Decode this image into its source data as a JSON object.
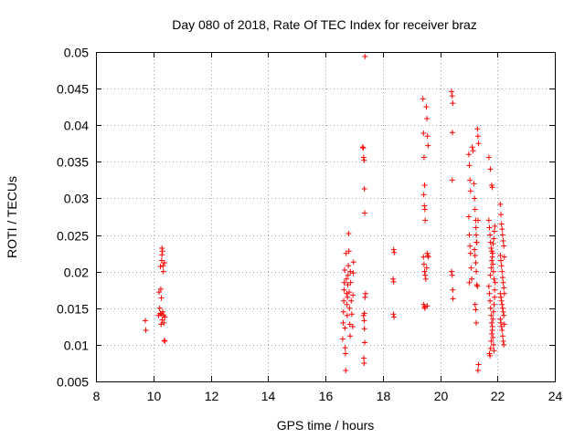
{
  "chart_data": {
    "type": "scatter",
    "title": "Day 080 of 2018, Rate Of TEC Index for receiver braz",
    "xlabel": "GPS time / hours",
    "ylabel": "ROTI / TECUs",
    "xlim": [
      8,
      24
    ],
    "ylim": [
      0.005,
      0.05
    ],
    "x_ticks": [
      8,
      10,
      12,
      14,
      16,
      18,
      20,
      22,
      24
    ],
    "x_tick_labels": [
      "8",
      "10",
      "12",
      "14",
      "16",
      "18",
      "20",
      "22",
      "24"
    ],
    "y_ticks": [
      0.005,
      0.01,
      0.015,
      0.02,
      0.025,
      0.03,
      0.035,
      0.04,
      0.045,
      0.05
    ],
    "y_tick_labels": [
      "0.005",
      "0.01",
      "0.015",
      "0.02",
      "0.025",
      "0.03",
      "0.035",
      "0.04",
      "0.045",
      "0.05"
    ],
    "grid": true,
    "marker": "+",
    "color": "#ff0000",
    "series": [
      {
        "name": "ROTI",
        "points": [
          [
            9.72,
            0.0133
          ],
          [
            9.74,
            0.012
          ],
          [
            10.18,
            0.014
          ],
          [
            10.2,
            0.0172
          ],
          [
            10.22,
            0.015
          ],
          [
            10.24,
            0.0143
          ],
          [
            10.25,
            0.0207
          ],
          [
            10.26,
            0.0176
          ],
          [
            10.27,
            0.0128
          ],
          [
            10.28,
            0.0164
          ],
          [
            10.29,
            0.0215
          ],
          [
            10.3,
            0.0223
          ],
          [
            10.31,
            0.0134
          ],
          [
            10.32,
            0.0228
          ],
          [
            10.33,
            0.0145
          ],
          [
            10.34,
            0.0208
          ],
          [
            10.35,
            0.02
          ],
          [
            10.36,
            0.014
          ],
          [
            10.37,
            0.013
          ],
          [
            10.38,
            0.0106
          ],
          [
            10.39,
            0.0212
          ],
          [
            10.4,
            0.0138
          ],
          [
            10.4,
            0.0105
          ],
          [
            10.3,
            0.0232
          ],
          [
            10.27,
            0.0142
          ],
          [
            16.6,
            0.0108
          ],
          [
            16.62,
            0.013
          ],
          [
            16.63,
            0.0145
          ],
          [
            16.64,
            0.016
          ],
          [
            16.65,
            0.0175
          ],
          [
            16.66,
            0.0185
          ],
          [
            16.67,
            0.0202
          ],
          [
            16.68,
            0.0123
          ],
          [
            16.69,
            0.0096
          ],
          [
            16.7,
            0.0088
          ],
          [
            16.71,
            0.0065
          ],
          [
            16.72,
            0.0225
          ],
          [
            16.73,
            0.019
          ],
          [
            16.74,
            0.017
          ],
          [
            16.75,
            0.0155
          ],
          [
            16.76,
            0.014
          ],
          [
            16.77,
            0.0165
          ],
          [
            16.78,
            0.0182
          ],
          [
            16.79,
            0.0195
          ],
          [
            16.8,
            0.0208
          ],
          [
            16.81,
            0.0252
          ],
          [
            16.82,
            0.0228
          ],
          [
            16.83,
            0.0172
          ],
          [
            16.84,
            0.015
          ],
          [
            16.85,
            0.0128
          ],
          [
            16.86,
            0.0112
          ],
          [
            16.87,
            0.02
          ],
          [
            16.88,
            0.0185
          ],
          [
            16.9,
            0.016
          ],
          [
            16.92,
            0.0142
          ],
          [
            16.95,
            0.0125
          ],
          [
            16.96,
            0.0168
          ],
          [
            16.97,
            0.0198
          ],
          [
            16.98,
            0.0213
          ],
          [
            17.3,
            0.037
          ],
          [
            17.32,
            0.0369
          ],
          [
            17.33,
            0.0356
          ],
          [
            17.35,
            0.0352
          ],
          [
            17.36,
            0.0313
          ],
          [
            17.37,
            0.028
          ],
          [
            17.38,
            0.0494
          ],
          [
            17.33,
            0.014
          ],
          [
            17.35,
            0.0133
          ],
          [
            17.36,
            0.0122
          ],
          [
            17.37,
            0.0103
          ],
          [
            17.34,
            0.0082
          ],
          [
            17.35,
            0.0075
          ],
          [
            17.38,
            0.0165
          ],
          [
            17.4,
            0.017
          ],
          [
            17.36,
            0.0143
          ],
          [
            18.38,
            0.023
          ],
          [
            18.4,
            0.0226
          ],
          [
            18.36,
            0.019
          ],
          [
            18.38,
            0.0186
          ],
          [
            18.37,
            0.0142
          ],
          [
            18.39,
            0.0138
          ],
          [
            19.4,
            0.0436
          ],
          [
            19.42,
            0.0389
          ],
          [
            19.44,
            0.0356
          ],
          [
            19.46,
            0.0318
          ],
          [
            19.43,
            0.0305
          ],
          [
            19.45,
            0.029
          ],
          [
            19.47,
            0.0285
          ],
          [
            19.48,
            0.027
          ],
          [
            19.42,
            0.022
          ],
          [
            19.44,
            0.021
          ],
          [
            19.46,
            0.02
          ],
          [
            19.48,
            0.0195
          ],
          [
            19.5,
            0.019
          ],
          [
            19.43,
            0.0155
          ],
          [
            19.45,
            0.0152
          ],
          [
            19.47,
            0.015
          ],
          [
            19.52,
            0.0425
          ],
          [
            19.54,
            0.0409
          ],
          [
            19.56,
            0.0385
          ],
          [
            19.58,
            0.0372
          ],
          [
            19.55,
            0.0225
          ],
          [
            19.57,
            0.0222
          ],
          [
            19.59,
            0.022
          ],
          [
            19.53,
            0.0205
          ],
          [
            19.55,
            0.0153
          ],
          [
            20.4,
            0.0446
          ],
          [
            20.42,
            0.044
          ],
          [
            20.44,
            0.043
          ],
          [
            20.43,
            0.039
          ],
          [
            20.42,
            0.0325
          ],
          [
            20.4,
            0.02
          ],
          [
            20.42,
            0.0195
          ],
          [
            20.44,
            0.0175
          ],
          [
            20.45,
            0.0163
          ],
          [
            21.0,
            0.036
          ],
          [
            21.02,
            0.0345
          ],
          [
            21.04,
            0.0325
          ],
          [
            21.06,
            0.031
          ],
          [
            21.0,
            0.0275
          ],
          [
            21.02,
            0.025
          ],
          [
            21.04,
            0.0235
          ],
          [
            21.06,
            0.0225
          ],
          [
            21.08,
            0.0205
          ],
          [
            21.1,
            0.019
          ],
          [
            21.02,
            0.0185
          ],
          [
            21.12,
            0.037
          ],
          [
            21.15,
            0.0365
          ],
          [
            21.18,
            0.032
          ],
          [
            21.2,
            0.03
          ],
          [
            21.22,
            0.0285
          ],
          [
            21.24,
            0.027
          ],
          [
            21.25,
            0.026
          ],
          [
            21.26,
            0.025
          ],
          [
            21.27,
            0.024
          ],
          [
            21.2,
            0.023
          ],
          [
            21.22,
            0.0222
          ],
          [
            21.24,
            0.0212
          ],
          [
            21.26,
            0.02
          ],
          [
            21.28,
            0.0182
          ],
          [
            21.3,
            0.018
          ],
          [
            21.22,
            0.0155
          ],
          [
            21.24,
            0.0148
          ],
          [
            21.26,
            0.013
          ],
          [
            21.3,
            0.0395
          ],
          [
            21.32,
            0.0385
          ],
          [
            21.34,
            0.0375
          ],
          [
            21.28,
            0.024
          ],
          [
            21.32,
            0.027
          ],
          [
            21.34,
            0.0073
          ],
          [
            21.32,
            0.0065
          ],
          [
            21.7,
            0.0356
          ],
          [
            21.75,
            0.034
          ],
          [
            21.8,
            0.0318
          ],
          [
            21.82,
            0.0315
          ],
          [
            21.7,
            0.027
          ],
          [
            21.72,
            0.026
          ],
          [
            21.74,
            0.025
          ],
          [
            21.76,
            0.024
          ],
          [
            21.78,
            0.0232
          ],
          [
            21.8,
            0.0228
          ],
          [
            21.82,
            0.022
          ],
          [
            21.84,
            0.021
          ],
          [
            21.86,
            0.02
          ],
          [
            21.88,
            0.019
          ],
          [
            21.7,
            0.018
          ],
          [
            21.72,
            0.017
          ],
          [
            21.74,
            0.016
          ],
          [
            21.76,
            0.015
          ],
          [
            21.78,
            0.014
          ],
          [
            21.8,
            0.013
          ],
          [
            21.82,
            0.012
          ],
          [
            21.84,
            0.011
          ],
          [
            21.86,
            0.01
          ],
          [
            21.88,
            0.0092
          ],
          [
            21.72,
            0.0088
          ],
          [
            21.74,
            0.0085
          ],
          [
            21.76,
            0.0095
          ],
          [
            21.78,
            0.0105
          ],
          [
            21.8,
            0.0115
          ],
          [
            21.82,
            0.0125
          ],
          [
            21.84,
            0.0135
          ],
          [
            21.86,
            0.0145
          ],
          [
            21.88,
            0.0155
          ],
          [
            21.9,
            0.0165
          ],
          [
            21.9,
            0.0175
          ],
          [
            21.92,
            0.0185
          ],
          [
            21.75,
            0.0195
          ],
          [
            21.78,
            0.0205
          ],
          [
            21.8,
            0.0215
          ],
          [
            21.83,
            0.0225
          ],
          [
            21.85,
            0.0238
          ],
          [
            21.87,
            0.0245
          ],
          [
            21.89,
            0.0255
          ],
          [
            21.91,
            0.0262
          ],
          [
            22.1,
            0.0292
          ],
          [
            22.12,
            0.0278
          ],
          [
            22.14,
            0.0265
          ],
          [
            22.16,
            0.0258
          ],
          [
            22.18,
            0.025
          ],
          [
            22.2,
            0.0242
          ],
          [
            22.22,
            0.0235
          ],
          [
            22.1,
            0.0222
          ],
          [
            22.12,
            0.0215
          ],
          [
            22.14,
            0.0208
          ],
          [
            22.16,
            0.02
          ],
          [
            22.18,
            0.0192
          ],
          [
            22.2,
            0.0185
          ],
          [
            22.22,
            0.0178
          ],
          [
            22.1,
            0.017
          ],
          [
            22.12,
            0.0165
          ],
          [
            22.14,
            0.016
          ],
          [
            22.16,
            0.0155
          ],
          [
            22.18,
            0.015
          ],
          [
            22.2,
            0.0145
          ],
          [
            22.22,
            0.014
          ],
          [
            22.1,
            0.0135
          ],
          [
            22.12,
            0.013
          ],
          [
            22.14,
            0.0125
          ],
          [
            22.16,
            0.012
          ],
          [
            22.18,
            0.0112
          ],
          [
            22.2,
            0.0105
          ],
          [
            22.22,
            0.01
          ],
          [
            22.24,
            0.022
          ],
          [
            22.24,
            0.017
          ],
          [
            22.24,
            0.0128
          ]
        ]
      }
    ]
  }
}
